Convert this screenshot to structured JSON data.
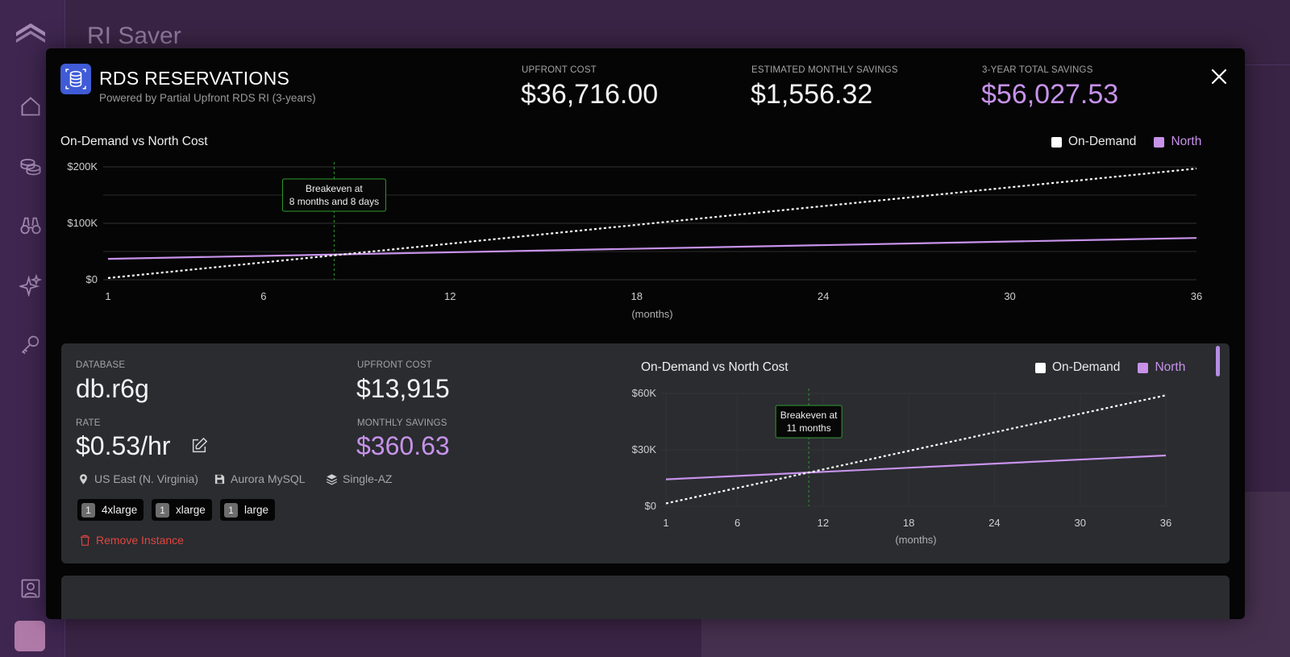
{
  "app": {
    "title": "RI Saver"
  },
  "modal": {
    "title": "RDS RESERVATIONS",
    "subtitle": "Powered by Partial Upfront RDS RI (3-years)",
    "metrics": [
      {
        "label": "UPFRONT COST",
        "value": "$36,716.00"
      },
      {
        "label": "ESTIMATED MONTHLY SAVINGS",
        "value": "$1,556.32"
      },
      {
        "label": "3-YEAR TOTAL SAVINGS",
        "value": "$56,027.53",
        "color": "#c792ea"
      }
    ],
    "close_icon": "close-icon"
  },
  "legend": {
    "on_demand": "On-Demand",
    "north": "North"
  },
  "colors": {
    "on_demand": "#ffffff",
    "north": "#c792ea",
    "breakeven": "#2f9a2f"
  },
  "chart_data": [
    {
      "type": "line",
      "title": "On-Demand vs North Cost",
      "xlabel": "(months)",
      "x_ticks": [
        1,
        6,
        12,
        18,
        24,
        30,
        36
      ],
      "y_ticks": [
        "$0",
        "$100K",
        "$200K"
      ],
      "xlim": [
        1,
        36
      ],
      "ylim": [
        0,
        200000
      ],
      "series": [
        {
          "name": "On-Demand",
          "x": [
            1,
            36
          ],
          "y": [
            3000,
            197000
          ]
        },
        {
          "name": "North",
          "x": [
            1,
            36
          ],
          "y": [
            37000,
            74000
          ]
        }
      ],
      "breakeven": {
        "x": 8.27,
        "label_line1": "Breakeven at",
        "label_line2": "8 months and 8 days"
      }
    },
    {
      "type": "line",
      "title": "On-Demand vs North Cost",
      "xlabel": "(months)",
      "x_ticks": [
        1,
        6,
        12,
        18,
        24,
        30,
        36
      ],
      "y_ticks": [
        "$0",
        "$30K",
        "$60K"
      ],
      "xlim": [
        1,
        36
      ],
      "ylim": [
        0,
        60000
      ],
      "series": [
        {
          "name": "On-Demand",
          "x": [
            1,
            36
          ],
          "y": [
            1500,
            59000
          ]
        },
        {
          "name": "North",
          "x": [
            1,
            36
          ],
          "y": [
            14300,
            27000
          ]
        }
      ],
      "breakeven": {
        "x": 11,
        "label_line1": "Breakeven at",
        "label_line2": "11 months"
      }
    }
  ],
  "instance": {
    "database_label": "DATABASE",
    "database": "db.r6g",
    "upfront_label": "UPFRONT COST",
    "upfront": "$13,915",
    "rate_label": "RATE",
    "rate": "$0.53/hr",
    "monthly_label": "MONTHLY SAVINGS",
    "monthly": "$360.63",
    "region": "US East (N. Virginia)",
    "engine": "Aurora MySQL",
    "deployment": "Single-AZ",
    "sizes": [
      {
        "count": "1",
        "name": "4xlarge"
      },
      {
        "count": "1",
        "name": "xlarge"
      },
      {
        "count": "1",
        "name": "large"
      }
    ],
    "remove_label": "Remove Instance"
  }
}
